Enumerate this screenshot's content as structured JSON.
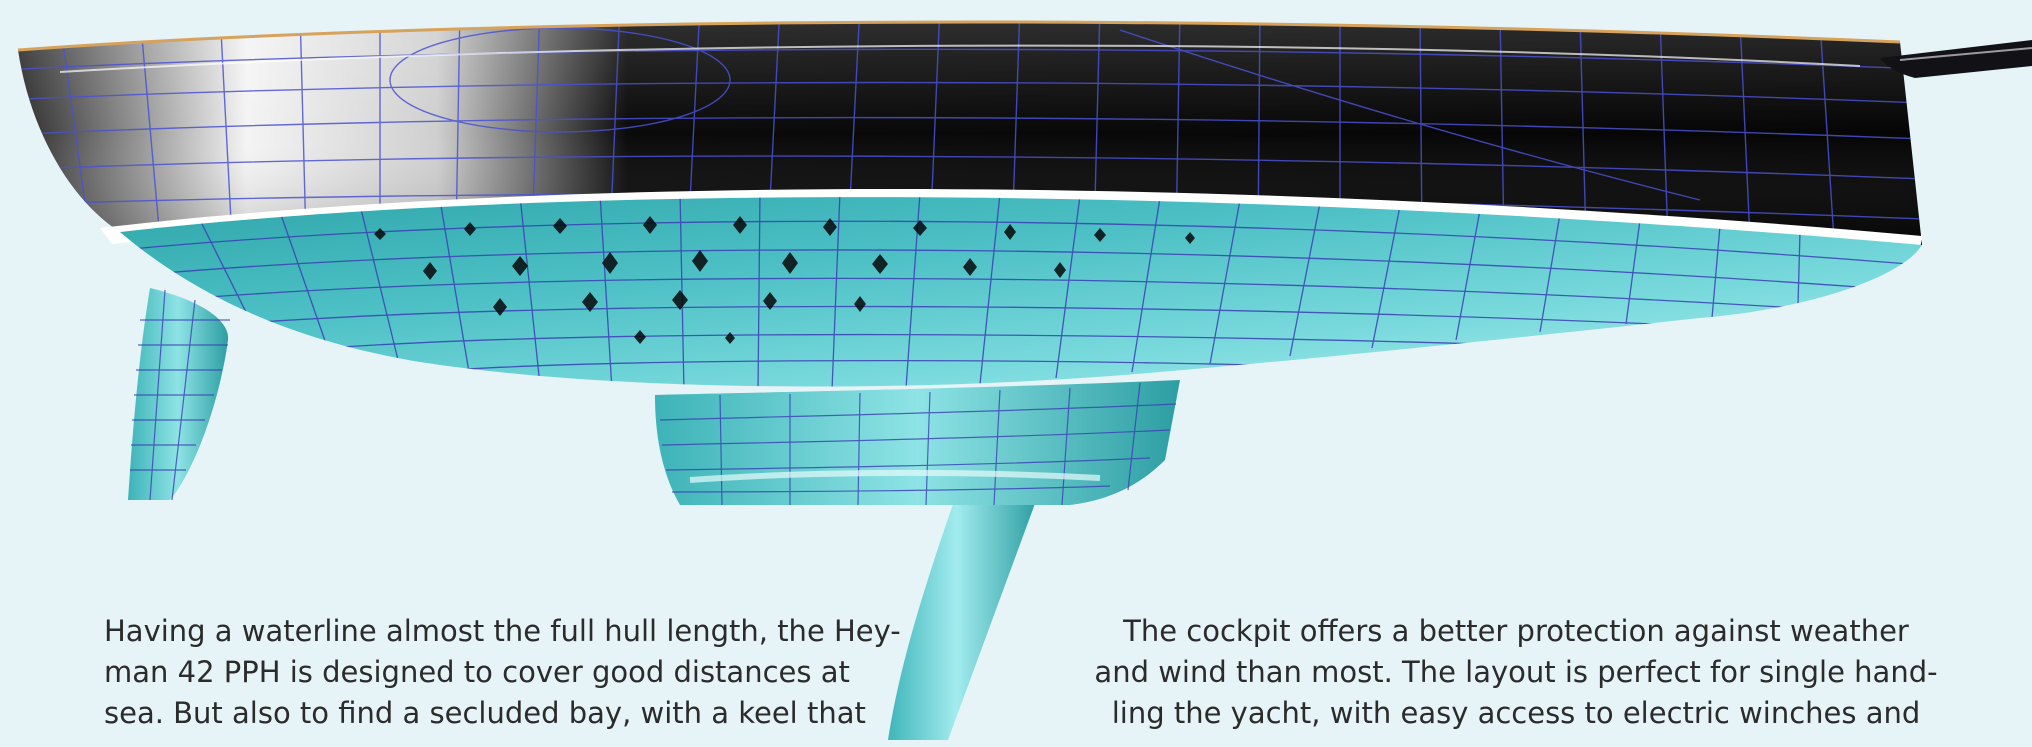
{
  "caption_left": {
    "lines": [
      "Having a waterline almost the full hull length, the Hey-",
      "man 42 PPH is designed to cover good distances at",
      "sea. But also to find a secluded bay, with a keel that"
    ]
  },
  "caption_right": {
    "lines": [
      "The cockpit offers a better protection against weather",
      "and wind than most. The layout is perfect for single hand-",
      "ling the yacht, with easy access to electric winches and"
    ]
  },
  "colors": {
    "background": "#e6f4f7",
    "topsides": "#0b0b10",
    "underwater_hull": "#5fcfd3",
    "mesh_lines": "#3a3fb3",
    "boot_stripe": "#ffffff",
    "text": "#2b2b2b"
  }
}
